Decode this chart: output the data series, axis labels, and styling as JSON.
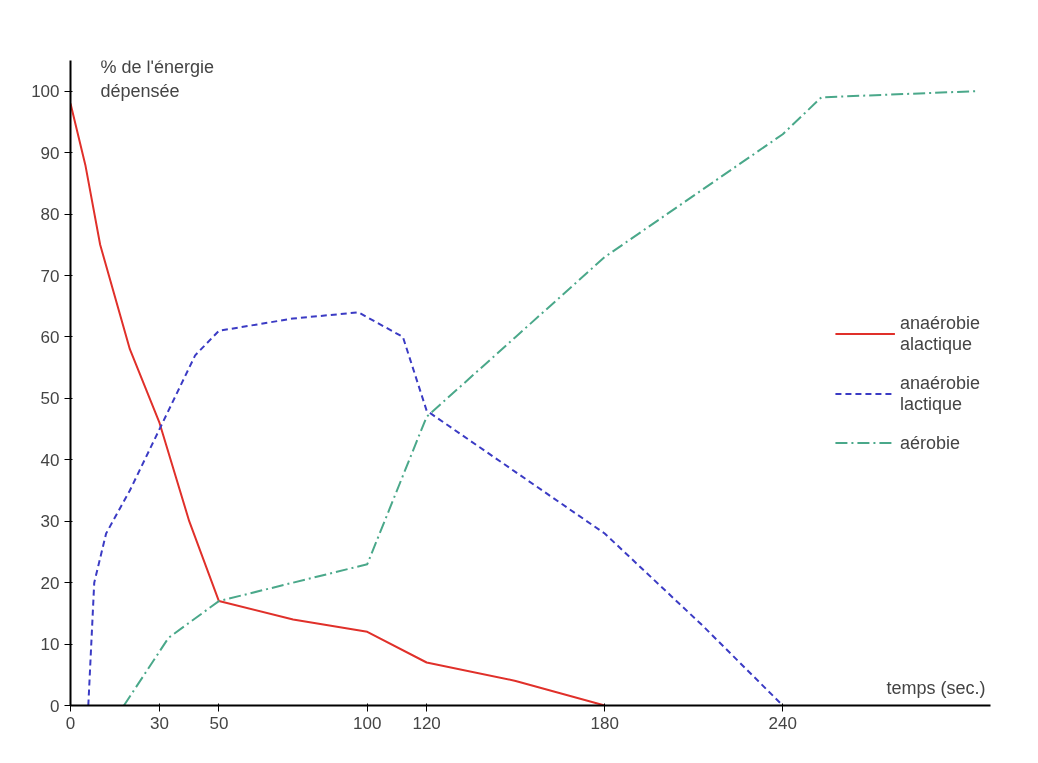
{
  "chart_data": {
    "type": "line",
    "xlabel": "temps (sec.)",
    "ylabel": "% de l'énergie dépensée",
    "xlim": [
      0,
      310
    ],
    "ylim": [
      0,
      105
    ],
    "xticks": [
      0,
      30,
      50,
      100,
      120,
      180,
      240
    ],
    "yticks": [
      0,
      10,
      20,
      30,
      40,
      50,
      60,
      70,
      80,
      90,
      100
    ],
    "grid": false,
    "legend": "right",
    "marker": "none",
    "series": [
      {
        "name": "anaérobie alactique",
        "color": "#e0302a",
        "line_style": "solid",
        "x": [
          0,
          5,
          10,
          20,
          30,
          40,
          50,
          75,
          100,
          120,
          150,
          180
        ],
        "values": [
          98,
          88,
          75,
          58,
          46,
          30,
          17,
          14,
          12,
          7,
          4,
          0
        ]
      },
      {
        "name": "anaérobie lactique",
        "color": "#3b3bc4",
        "line_style": "dashed",
        "x": [
          6,
          8,
          12,
          20,
          30,
          42,
          50,
          75,
          97,
          112,
          120,
          150,
          180,
          213,
          240
        ],
        "values": [
          0,
          20,
          28,
          35,
          45,
          57,
          61,
          63,
          64,
          60,
          48,
          38,
          28,
          13,
          0
        ]
      },
      {
        "name": "aérobie",
        "color": "#4aa88a",
        "line_style": "dashdot",
        "x": [
          18,
          33,
          50,
          100,
          120,
          150,
          180,
          210,
          240,
          253,
          305
        ],
        "values": [
          0,
          11,
          17,
          23,
          47,
          60,
          73,
          83,
          93,
          99,
          100
        ]
      }
    ]
  }
}
